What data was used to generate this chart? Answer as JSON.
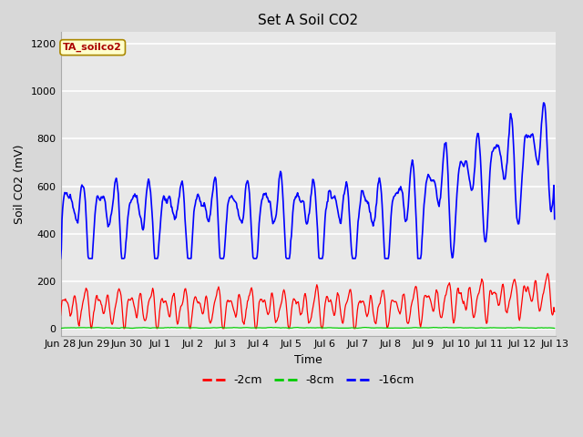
{
  "title": "Set A Soil CO2",
  "xlabel": "Time",
  "ylabel": "Soil CO2 (mV)",
  "legend_label": "TA_soilco2",
  "line_labels": [
    "-2cm",
    "-8cm",
    "-16cm"
  ],
  "line_colors": [
    "#ff0000",
    "#00cc00",
    "#0000ff"
  ],
  "ylim": [
    -30,
    1250
  ],
  "yticks": [
    0,
    200,
    400,
    600,
    800,
    1000,
    1200
  ],
  "bg_color": "#e8e8e8",
  "grid_color": "#ffffff",
  "title_fontsize": 11,
  "axis_label_fontsize": 9,
  "tick_fontsize": 8,
  "legend_label_color": "#aa0000",
  "legend_box_face": "#ffffcc",
  "legend_box_edge": "#aa8800"
}
